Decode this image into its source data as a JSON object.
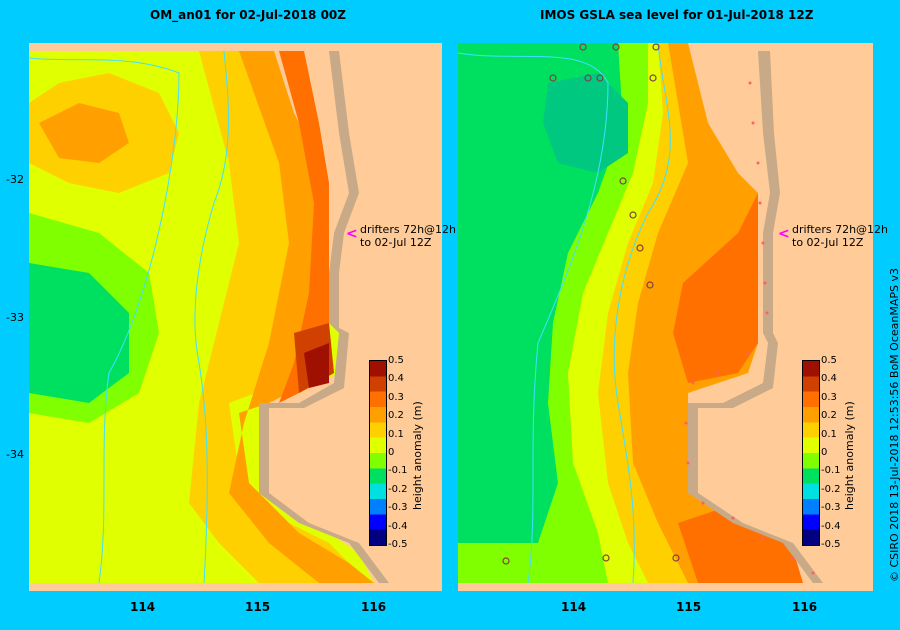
{
  "panels": [
    {
      "title": "OM_an01  for 02-Jul-2018 00Z",
      "drifter_line1": "drifters 72h@12h",
      "drifter_line2": "to 02-Jul 12Z"
    },
    {
      "title": "IMOS GSLA sea level  for 01-Jul-2018 12Z",
      "drifter_line1": "drifters 72h@12h",
      "drifter_line2": "to 02-Jul 12Z"
    }
  ],
  "axes": {
    "lat_labels": [
      "-32",
      "-33",
      "-34"
    ],
    "lon_labels": [
      "114",
      "115",
      "116"
    ]
  },
  "colorbar": {
    "title": "height anomaly (m)",
    "ticks": [
      "0.5",
      "0.4",
      "0.3",
      "0.2",
      "0.1",
      "0",
      "-0.1",
      "-0.2",
      "-0.3",
      "-0.4",
      "-0.5"
    ],
    "colors": [
      "#000080",
      "#0000ff",
      "#0080ff",
      "#00e0e0",
      "#00e060",
      "#80ff00",
      "#e0ff00",
      "#ffd000",
      "#ffa000",
      "#ff7000",
      "#d04000",
      "#a01000"
    ]
  },
  "land_color": "#ffcc99",
  "credit": "© CSIRO 2018   13-Jul-2018 12:53:56 BoM OceanMAPS v3"
}
